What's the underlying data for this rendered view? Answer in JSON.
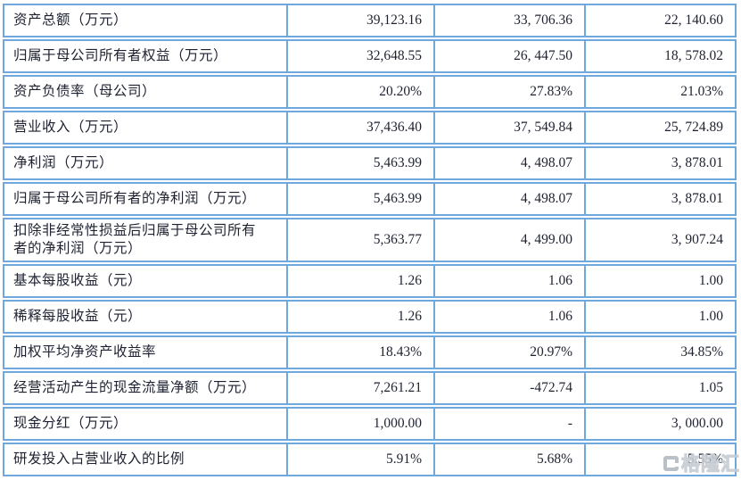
{
  "table": {
    "border_color": "#6fa8dc",
    "text_color": "#1e2230",
    "columns": [
      "indicator",
      "value_col_1",
      "value_col_2",
      "value_col_3"
    ],
    "rows": [
      {
        "label": "资产总额（万元）",
        "values": [
          "39,123.16",
          "33, 706.36",
          "22, 140.60"
        ]
      },
      {
        "label": "归属于母公司所有者权益（万元）",
        "values": [
          "32,648.55",
          "26, 447.50",
          "18, 578.02"
        ]
      },
      {
        "label": "资产负债率（母公司）",
        "values": [
          "20.20%",
          "27.83%",
          "21.03%"
        ]
      },
      {
        "label": "营业收入（万元）",
        "values": [
          "37,436.40",
          "37, 549.84",
          "25, 724.89"
        ]
      },
      {
        "label": "净利润（万元）",
        "values": [
          "5,463.99",
          "4, 498.07",
          "3, 878.01"
        ]
      },
      {
        "label": "归属于母公司所有者的净利润（万元）",
        "values": [
          "5,463.99",
          "4, 498.07",
          "3, 878.01"
        ]
      },
      {
        "label": "扣除非经常性损益后归属于母公司所有\n者的净利润（万元）",
        "values": [
          "5,363.77",
          "4, 499.00",
          "3, 907.24"
        ]
      },
      {
        "label": "基本每股收益（元）",
        "values": [
          "1.26",
          "1.06",
          "1.00"
        ]
      },
      {
        "label": "稀释每股收益（元）",
        "values": [
          "1.26",
          "1.06",
          "1.00"
        ]
      },
      {
        "label": "加权平均净资产收益率",
        "values": [
          "18.43%",
          "20.97%",
          "34.85%"
        ]
      },
      {
        "label": "经营活动产生的现金流量净额（万元）",
        "values": [
          "7,261.21",
          "-472.74",
          "1.05"
        ]
      },
      {
        "label": "现金分红（万元）",
        "values": [
          "1,000.00",
          "-",
          "3, 000.00"
        ]
      },
      {
        "label": "研发投入占营业收入的比例",
        "values": [
          "5.91%",
          "5.68%",
          "5.55%"
        ]
      }
    ]
  },
  "watermark": {
    "logo": "gelonghui-logo",
    "text": "格隆汇"
  }
}
